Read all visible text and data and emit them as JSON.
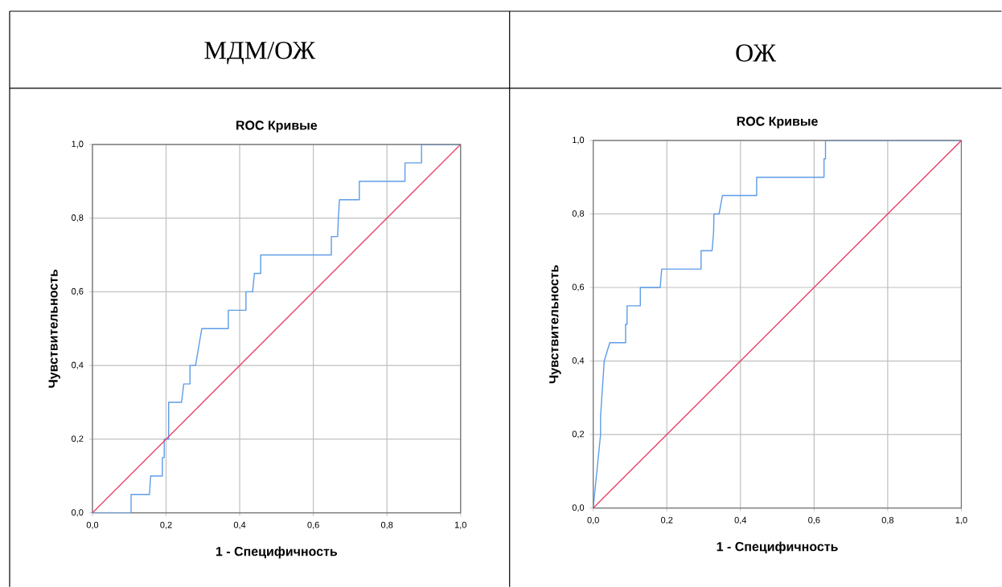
{
  "chart_data": [
    {
      "type": "line",
      "title": "МДМ/ОЖ",
      "subtitle": "ROC Кривые",
      "xlabel": "1 - Специфичность",
      "ylabel": "Чувствительность",
      "grid": true,
      "marker": "none",
      "xlim": [
        0,
        1
      ],
      "ylim": [
        0,
        1
      ],
      "xticks": [
        {
          "value": 0,
          "label": "0,0"
        },
        {
          "value": 0.2,
          "label": "0,2"
        },
        {
          "value": 0.4,
          "label": "0,4"
        },
        {
          "value": 0.6,
          "label": "0,6"
        },
        {
          "value": 0.8,
          "label": "0,8"
        },
        {
          "value": 1,
          "label": "1,0"
        }
      ],
      "yticks": [
        {
          "value": 0,
          "label": "0,0"
        },
        {
          "value": 0.2,
          "label": "0,2"
        },
        {
          "value": 0.4,
          "label": "0,4"
        },
        {
          "value": 0.6,
          "label": "0,6"
        },
        {
          "value": 0.8,
          "label": "0,8"
        },
        {
          "value": 1,
          "label": "1,0"
        }
      ],
      "series": [
        {
          "color": "#5d9ce8",
          "x": [
            0,
            0.105,
            0.105,
            0.155,
            0.158,
            0.19,
            0.19,
            0.195,
            0.195,
            0.207,
            0.207,
            0.242,
            0.248,
            0.265,
            0.265,
            0.28,
            0.297,
            0.369,
            0.369,
            0.417,
            0.417,
            0.435,
            0.44,
            0.457,
            0.457,
            0.649,
            0.649,
            0.666,
            0.668,
            0.671,
            0.725,
            0.725,
            0.849,
            0.849,
            0.894,
            0.894,
            1
          ],
          "values": [
            0,
            0,
            0.05,
            0.05,
            0.1,
            0.1,
            0.15,
            0.15,
            0.2,
            0.2,
            0.3,
            0.3,
            0.35,
            0.35,
            0.4,
            0.4,
            0.5,
            0.5,
            0.55,
            0.55,
            0.6,
            0.6,
            0.65,
            0.65,
            0.7,
            0.7,
            0.75,
            0.75,
            0.8,
            0.85,
            0.85,
            0.9,
            0.9,
            0.95,
            0.95,
            1,
            1
          ]
        },
        {
          "color": "#e8416a",
          "x": [
            0,
            1
          ],
          "values": [
            0,
            1
          ]
        }
      ]
    },
    {
      "type": "line",
      "title": "ОЖ",
      "subtitle": "ROC Кривые",
      "xlabel": "1 - Специфичность",
      "ylabel": "Чувствительность",
      "grid": true,
      "marker": "none",
      "xlim": [
        0,
        1
      ],
      "ylim": [
        0,
        1
      ],
      "xticks": [
        {
          "value": 0,
          "label": "0,0"
        },
        {
          "value": 0.2,
          "label": "0,2"
        },
        {
          "value": 0.4,
          "label": "0,4"
        },
        {
          "value": 0.6,
          "label": "0,6"
        },
        {
          "value": 0.8,
          "label": "0,8"
        },
        {
          "value": 1,
          "label": "1,0"
        }
      ],
      "yticks": [
        {
          "value": 0,
          "label": "0,0"
        },
        {
          "value": 0.2,
          "label": "0,2"
        },
        {
          "value": 0.4,
          "label": "0,4"
        },
        {
          "value": 0.6,
          "label": "0,6"
        },
        {
          "value": 0.8,
          "label": "0,8"
        },
        {
          "value": 1,
          "label": "1,0"
        }
      ],
      "series": [
        {
          "color": "#5d9ce8",
          "x": [
            0,
            0.02,
            0.02,
            0.03,
            0.045,
            0.088,
            0.088,
            0.092,
            0.092,
            0.128,
            0.128,
            0.182,
            0.186,
            0.293,
            0.293,
            0.323,
            0.327,
            0.328,
            0.342,
            0.351,
            0.444,
            0.444,
            0.627,
            0.627,
            0.631,
            0.631,
            1
          ],
          "values": [
            0,
            0.2,
            0.25,
            0.4,
            0.45,
            0.45,
            0.5,
            0.5,
            0.55,
            0.55,
            0.6,
            0.6,
            0.65,
            0.65,
            0.7,
            0.7,
            0.75,
            0.8,
            0.8,
            0.85,
            0.85,
            0.9,
            0.9,
            0.95,
            0.95,
            1,
            1
          ]
        },
        {
          "color": "#e8416a",
          "x": [
            0,
            1
          ],
          "values": [
            0,
            1
          ]
        }
      ]
    }
  ]
}
